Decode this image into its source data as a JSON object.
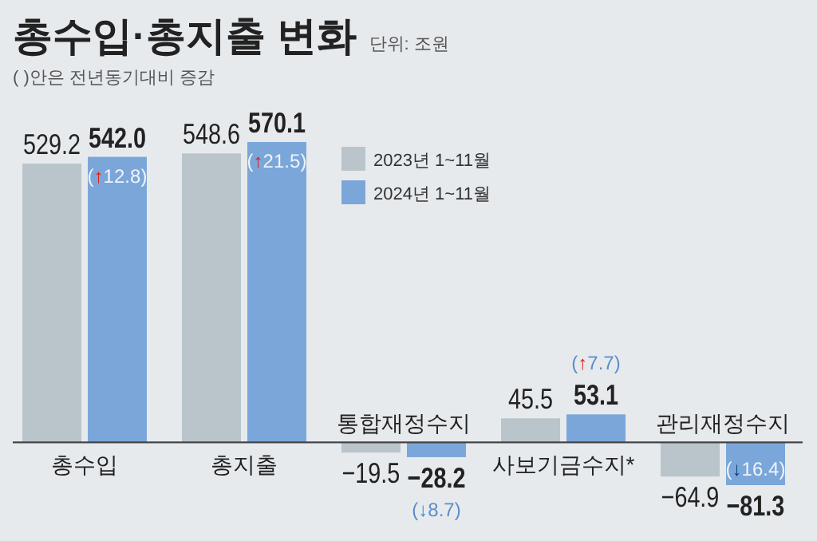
{
  "chart_data": {
    "type": "bar",
    "title": "총수입·총지출 변화",
    "subtitle": "( )안은 전년동기대비 증감",
    "categories": [
      "총수입",
      "총지출",
      "통합재정수지",
      "사보기금수지*",
      "관리재정수지"
    ],
    "series": [
      {
        "name": "2023년 1~11월",
        "color": "#b9c5cb",
        "values": [
          529.2,
          548.6,
          -19.5,
          45.5,
          -64.9
        ],
        "value_labels": [
          "529.2",
          "548.6",
          "−19.5",
          "45.5",
          "−64.9"
        ]
      },
      {
        "name": "2024년 1~11월",
        "color": "#7ba6d9",
        "values": [
          542.0,
          570.1,
          -28.2,
          53.1,
          -81.3
        ],
        "value_labels": [
          "542.0",
          "570.1",
          "−28.2",
          "53.1",
          "−81.3"
        ]
      }
    ],
    "legend": "top",
    "annotations": [
      "단위: 조원",
      {
        "text": "(↑12.8)",
        "x": "총수입",
        "y": 542.0
      },
      {
        "text": "(↑21.5)",
        "x": "총지출",
        "y": 570.1
      },
      {
        "text": "(↓8.7)",
        "x": "통합재정수지",
        "y": -28.2
      },
      {
        "text": "(↑7.7)",
        "x": "사보기금수지*",
        "y": 53.1
      },
      {
        "text": "(↓16.4)",
        "x": "관리재정수지",
        "y": -81.3
      }
    ]
  }
}
